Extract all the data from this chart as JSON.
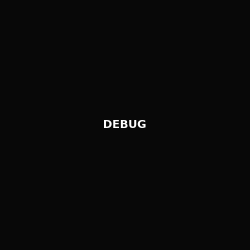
{
  "bg_color": "#080808",
  "bond_color": "#d8d8d8",
  "atom_colors": {
    "O": "#ff3333",
    "N": "#3333ff",
    "S": "#bbaa00",
    "C": "#d8d8d8"
  }
}
